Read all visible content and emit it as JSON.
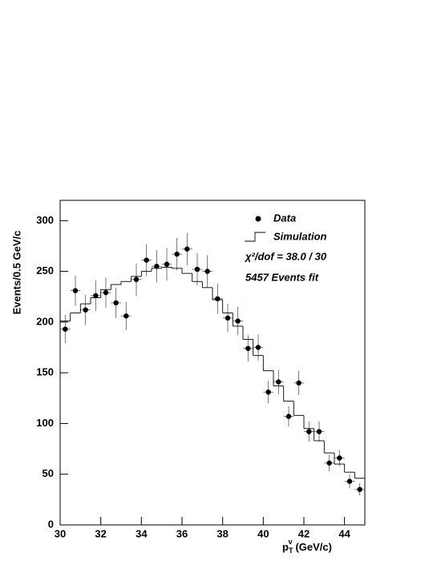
{
  "chart_data": {
    "type": "scatter",
    "xlabel": {
      "main": "p",
      "sub": "T",
      "sup": "ν",
      "rest": "(GeV/c)"
    },
    "ylabel": "Events/0.5 GeV/c",
    "annotations": [
      "χ²/dof = 38.0 / 30",
      "5457 Events fit"
    ],
    "xlim": [
      30,
      45
    ],
    "xticks": [
      30,
      32,
      34,
      36,
      38,
      40,
      42,
      44
    ],
    "ylim": [
      0,
      320
    ],
    "yticks": [
      0,
      50,
      100,
      150,
      200,
      250,
      300
    ],
    "series": [
      {
        "name": "Data",
        "type": "errorbar",
        "color": "#000000",
        "x": [
          30.25,
          30.75,
          31.25,
          31.75,
          32.25,
          32.75,
          33.25,
          33.75,
          34.25,
          34.75,
          35.25,
          35.75,
          36.25,
          36.75,
          37.25,
          37.75,
          38.25,
          38.75,
          39.25,
          39.75,
          40.25,
          40.75,
          41.25,
          41.75,
          42.25,
          42.75,
          43.25,
          43.75,
          44.25,
          44.75
        ],
        "values": [
          193,
          231,
          212,
          226,
          229,
          219,
          206,
          242,
          261,
          255,
          257,
          267,
          272,
          252,
          250,
          223,
          204,
          201,
          174,
          175,
          131,
          141,
          107,
          140,
          92,
          92,
          61,
          66,
          43,
          35
        ],
        "errors": [
          14,
          15,
          15,
          15,
          15,
          15,
          14,
          16,
          16,
          16,
          16,
          16,
          16,
          16,
          16,
          15,
          14,
          14,
          13,
          13,
          11,
          12,
          10,
          12,
          10,
          10,
          8,
          8,
          7,
          6
        ]
      },
      {
        "name": "Simulation",
        "type": "step",
        "color": "#000000",
        "bins": [
          30,
          30.5,
          31,
          31.5,
          32,
          32.5,
          33,
          33.5,
          34,
          34.5,
          35,
          35.5,
          36,
          36.5,
          37,
          37.5,
          38,
          38.5,
          39,
          39.5,
          40,
          40.5,
          41,
          41.5,
          42,
          42.5,
          43,
          43.5,
          44,
          44.5,
          45
        ],
        "values": [
          201,
          209,
          218,
          224,
          232,
          237,
          240,
          245,
          250,
          253,
          254,
          253,
          248,
          240,
          234,
          222,
          209,
          196,
          183,
          167,
          152,
          137,
          122,
          108,
          95,
          83,
          71,
          60,
          52,
          46
        ]
      }
    ]
  }
}
